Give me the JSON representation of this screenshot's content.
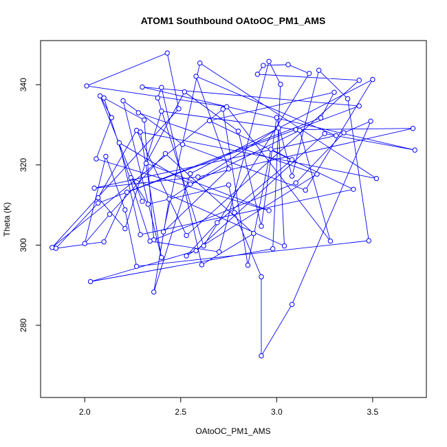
{
  "chart_data": {
    "type": "line",
    "title": "ATOM1 Southbound OAtoOC_PM1_AMS",
    "xlabel": "OAtoOC_PM1_AMS",
    "ylabel": "Theta (K)",
    "xlim": [
      1.77,
      3.78
    ],
    "ylim": [
      262,
      351
    ],
    "xticks": [
      "2.0",
      "2.5",
      "3.0",
      "3.5"
    ],
    "yticks": [
      "280",
      "300",
      "320",
      "340"
    ],
    "grid": false,
    "legend": "none",
    "colors": {
      "series": "#0000ff",
      "axis": "#000000",
      "background": "#ffffff"
    },
    "series": [
      {
        "x": [
          2.3,
          2.08,
          2.14,
          2.06,
          2.96,
          2.32,
          2.52,
          2.8,
          2.92,
          3.0,
          3.08,
          3.22,
          3.37,
          3.48,
          2.27,
          2.21,
          2.11,
          2.0,
          2.13,
          2.42,
          2.88,
          2.61,
          2.4,
          2.38,
          2.62,
          3.17,
          3.06,
          2.93,
          2.9,
          3.43,
          2.53,
          2.27,
          2.07,
          2.21,
          2.4,
          3.1,
          3.71,
          2.59,
          2.05,
          3.31,
          2.58,
          2.75,
          2.41,
          2.6,
          3.52,
          2.29,
          2.4,
          2.2,
          2.51,
          3.15,
          3.5,
          2.55,
          2.36,
          2.44,
          3.01,
          3.04,
          2.24,
          2.33,
          2.75,
          2.78,
          2.92,
          2.92,
          3.08,
          3.49,
          3.35,
          3.1,
          2.36,
          2.31,
          2.1,
          2.34,
          2.7,
          2.96,
          3.02,
          2.98,
          2.03,
          2.58,
          3.25,
          3.72,
          2.3,
          3.43,
          2.07,
          1.85,
          2.1,
          2.22,
          3.23,
          3.3,
          2.65,
          3.4,
          2.29,
          2.18,
          2.55,
          3.12,
          3.28,
          2.74,
          2.01,
          2.43,
          2.49,
          1.83,
          2.72,
          2.85,
          2.97,
          3.08,
          2.69,
          2.53,
          3.21,
          2.28
        ],
        "y": [
          310.9,
          337.2,
          331.8,
          321.5,
          308.6,
          320.4,
          338.2,
          328.4,
          304.7,
          331.8,
          317.2,
          343.6,
          336.5,
          301.1,
          294.7,
          308.8,
          322.1,
          300.4,
          307.7,
          322.8,
          302.9,
          295.1,
          339.3,
          336.7,
          299.8,
          342.8,
          345.0,
          344.8,
          342.6,
          341.1,
          302.4,
          328.6,
          311.8,
          304.1,
          333.4,
          328.8,
          329.1,
          317.0,
          314.2,
          327.3,
          342.1,
          319.0,
          303.3,
          345.4,
          316.6,
          328.2,
          296.9,
          336.0,
          325.1,
          313.7,
          341.3,
          317.8,
          288.3,
          311.5,
          329.2,
          299.8,
          316.8,
          310.2,
          315.0,
          308.1,
          292.1,
          272.4,
          285.2,
          330.9,
          328.0,
          315.5,
          301.3,
          331.2,
          336.7,
          301.0,
          298.3,
          345.8,
          340.1,
          299.1,
          290.9,
          298.6,
          327.8,
          323.7,
          339.4,
          334.7,
          310.5,
          299.2,
          300.8,
          313.2,
          331.7,
          338.1,
          331.0,
          313.9,
          302.6,
          325.5,
          315.2,
          328.6,
          301.0,
          334.5,
          339.7,
          347.9,
          334.0,
          299.4,
          333.9,
          295.0,
          323.9,
          321.3,
          305.6,
          297.3,
          317.7,
          333.0
        ]
      }
    ]
  }
}
